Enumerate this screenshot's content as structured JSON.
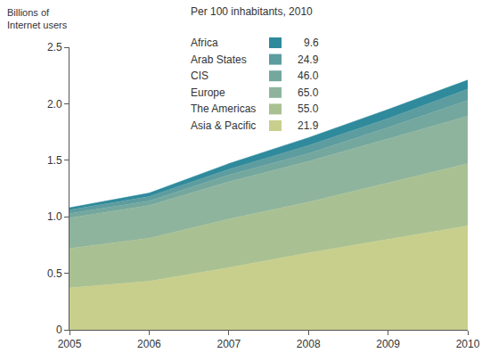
{
  "chart_data": {
    "type": "area",
    "stacked": true,
    "title": "Per 100 inhabitants, 2010",
    "ylabel": "Billions of\nInternet users",
    "x": [
      2005,
      2006,
      2007,
      2008,
      2009,
      2010
    ],
    "xlim": [
      2005,
      2010
    ],
    "xticks": [
      2005,
      2006,
      2007,
      2008,
      2009,
      2010
    ],
    "ylim": [
      0,
      2.5
    ],
    "yticks": [
      0,
      0.5,
      {
        "value": 1,
        "label": "1.0"
      },
      1.5,
      {
        "value": 2,
        "label": "2.0"
      },
      2.5
    ],
    "grid": false,
    "series": [
      {
        "name": "Africa",
        "color": "#2f8a9c",
        "per_100": 9.6,
        "per_100_label": "9.6",
        "values": [
          0.02,
          0.03,
          0.05,
          0.07,
          0.08,
          0.08
        ]
      },
      {
        "name": "Arab States",
        "color": "#5d9c9f",
        "per_100": 24.9,
        "per_100_label": "24.9",
        "values": [
          0.03,
          0.04,
          0.05,
          0.07,
          0.08,
          0.1
        ]
      },
      {
        "name": "CIS",
        "color": "#74a79e",
        "per_100": 46.0,
        "per_100_label": "46.0",
        "values": [
          0.04,
          0.04,
          0.06,
          0.07,
          0.1,
          0.14
        ]
      },
      {
        "name": "Europe",
        "color": "#8fb49d",
        "per_100": 65.0,
        "per_100_label": "65.0",
        "values": [
          0.27,
          0.29,
          0.33,
          0.36,
          0.39,
          0.42
        ]
      },
      {
        "name": "The Americas",
        "color": "#a9c192",
        "per_100": 55.0,
        "per_100_label": "55.0",
        "values": [
          0.35,
          0.38,
          0.43,
          0.45,
          0.5,
          0.55
        ]
      },
      {
        "name": "Asia & Pacific",
        "color": "#c8cf8c",
        "per_100": 21.9,
        "per_100_label": "21.9",
        "values": [
          0.37,
          0.43,
          0.55,
          0.68,
          0.8,
          0.92
        ]
      }
    ]
  }
}
